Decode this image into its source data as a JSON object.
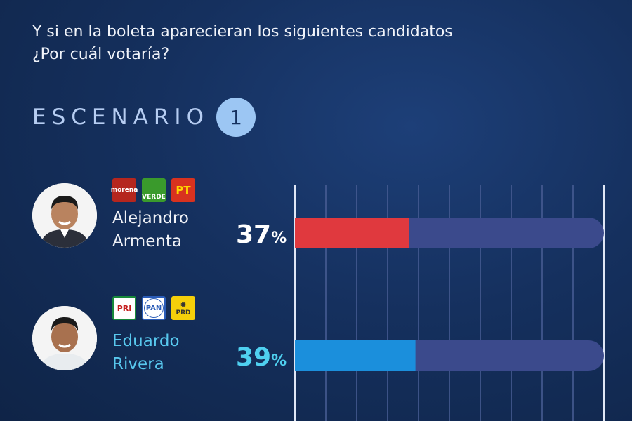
{
  "question": {
    "line1": "Y si en la boleta aparecieran los siguientes candidatos",
    "line2": "¿Por cuál votaría?"
  },
  "scenario": {
    "label": "ESCENARIO",
    "number": "1"
  },
  "candidates": [
    {
      "first_name": "Alejandro",
      "last_name": "Armenta",
      "percent": "37",
      "percent_sign": "%",
      "parties": [
        {
          "name": "morena",
          "icon": "morena-logo"
        },
        {
          "name": "VERDE",
          "icon": "verde-logo"
        },
        {
          "name": "PT",
          "icon": "pt-logo"
        }
      ],
      "bar_color": "#e0393e"
    },
    {
      "first_name": "Eduardo",
      "last_name": "Rivera",
      "percent": "39",
      "percent_sign": "%",
      "parties": [
        {
          "name": "PRI",
          "icon": "pri-logo"
        },
        {
          "name": "PAN",
          "icon": "pan-logo"
        },
        {
          "name": "PRD",
          "icon": "prd-logo"
        }
      ],
      "bar_color": "#1b8fdc"
    }
  ],
  "chart_data": {
    "type": "bar",
    "orientation": "horizontal",
    "categories": [
      "Alejandro Armenta",
      "Eduardo Rivera"
    ],
    "values": [
      37,
      39
    ],
    "unit": "%",
    "xlim": [
      0,
      100
    ],
    "grid": true,
    "colors": [
      "#e0393e",
      "#1b8fdc"
    ],
    "track_color": "#3b4a8c"
  }
}
